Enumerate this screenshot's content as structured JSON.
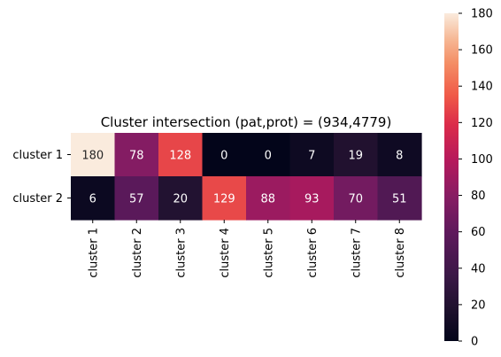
{
  "chart_data": {
    "type": "heatmap",
    "title": "Cluster intersection (pat,prot) = (934,4779)",
    "xlabel": "",
    "ylabel": "",
    "rows": [
      "cluster 1",
      "cluster 2"
    ],
    "columns": [
      "cluster 1",
      "cluster 2",
      "cluster 3",
      "cluster 4",
      "cluster 5",
      "cluster 6",
      "cluster 7",
      "cluster 8"
    ],
    "values": [
      [
        180,
        78,
        128,
        0,
        0,
        7,
        19,
        8
      ],
      [
        6,
        57,
        20,
        129,
        88,
        93,
        70,
        51
      ]
    ],
    "colorbar": {
      "min": 0,
      "max": 180,
      "ticks": [
        0,
        20,
        40,
        60,
        80,
        100,
        120,
        140,
        160,
        180
      ],
      "colormap": "rocket"
    },
    "grid": false
  }
}
